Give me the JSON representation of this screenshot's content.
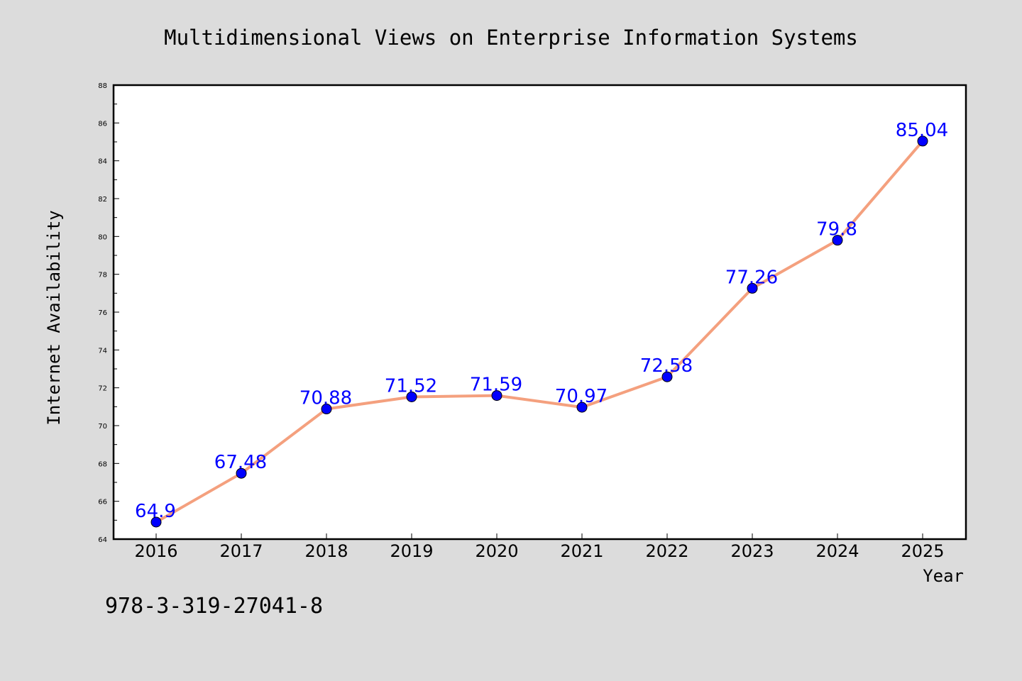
{
  "chart_data": {
    "type": "line",
    "title": "Multidimensional Views on Enterprise Information Systems",
    "xlabel": "Year",
    "ylabel": "Internet Availability",
    "categories": [
      "2016",
      "2017",
      "2018",
      "2019",
      "2020",
      "2021",
      "2022",
      "2023",
      "2024",
      "2025"
    ],
    "series": [
      {
        "values": [
          64.9,
          67.48,
          70.88,
          71.52,
          71.59,
          70.97,
          72.58,
          77.26,
          79.8,
          85.04
        ]
      }
    ],
    "data_labels": [
      "64.9",
      "67.48",
      "70.88",
      "71.52",
      "71.59",
      "70.97",
      "72.58",
      "77.26",
      "79.8",
      "85.04"
    ],
    "ylim": [
      64,
      88
    ],
    "yticks": [
      "64",
      "66",
      "68",
      "70",
      "72",
      "74",
      "76",
      "78",
      "80",
      "82",
      "84",
      "86",
      "88"
    ],
    "grid": false,
    "legend": "none",
    "colors": {
      "line": "#f4a07e",
      "marker": "#0000ff",
      "data_label": "#0000ff",
      "background": "#dcdcdc",
      "plot_background": "#ffffff"
    }
  },
  "footer": {
    "text": "978-3-319-27041-8"
  }
}
